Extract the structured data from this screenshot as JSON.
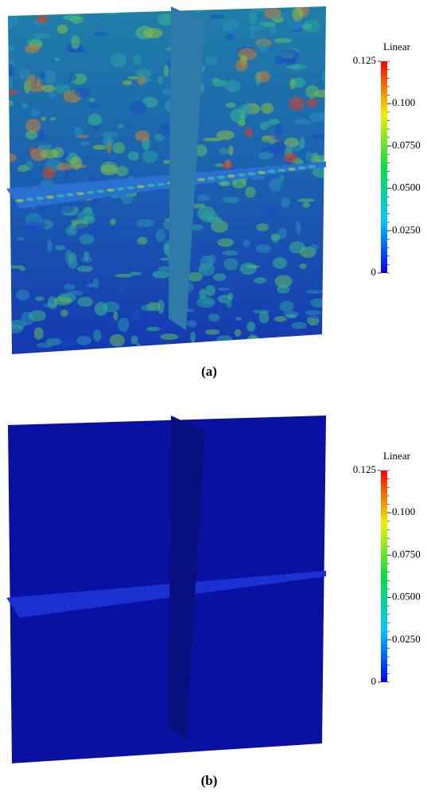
{
  "panels": [
    {
      "label": "(a)",
      "colorbar": {
        "title": "Linear",
        "ticks": [
          {
            "value": 0.125,
            "label": "0.125"
          },
          {
            "value": 0.1,
            "label": "0.100"
          },
          {
            "value": 0.075,
            "label": "0.0750"
          },
          {
            "value": 0.05,
            "label": "0.0500"
          },
          {
            "value": 0.025,
            "label": "0.0250"
          },
          {
            "value": 0,
            "label": "0"
          }
        ]
      }
    },
    {
      "label": "(b)",
      "colorbar": {
        "title": "Linear",
        "ticks": [
          {
            "value": 0.125,
            "label": "0.125"
          },
          {
            "value": 0.1,
            "label": "0.100"
          },
          {
            "value": 0.075,
            "label": "0.0750"
          },
          {
            "value": 0.05,
            "label": "0.0500"
          },
          {
            "value": 0.025,
            "label": "0.0250"
          },
          {
            "value": 0,
            "label": "0"
          }
        ]
      }
    }
  ]
}
